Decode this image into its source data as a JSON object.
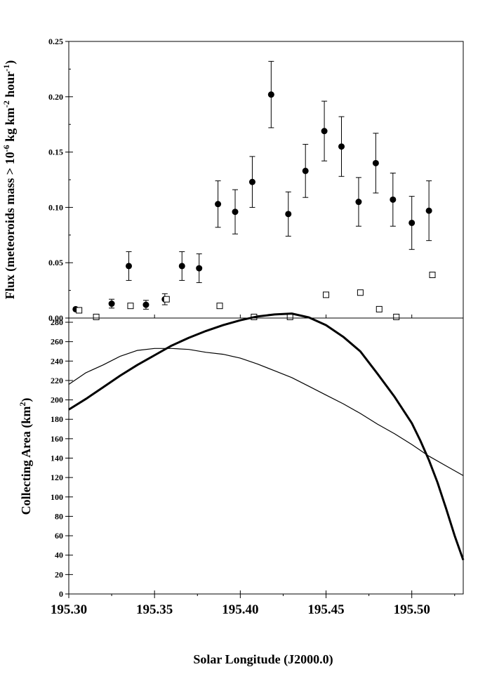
{
  "chart_data": [
    {
      "type": "scatter",
      "panel": "top",
      "ylabel": {
        "prefix": "Flux (meteoroids mass > 10",
        "exp1": "-6",
        "mid": " kg km",
        "exp2": "-2",
        "mid2": " hour",
        "exp3": "-1",
        "suffix": ")"
      },
      "xlim": [
        195.3,
        195.53
      ],
      "ylim": [
        0,
        0.25
      ],
      "yticks": [
        "0.00",
        "0.05",
        "0.10",
        "0.15",
        "0.20",
        "0.25"
      ],
      "grid": false,
      "legend": "none",
      "series": [
        {
          "marker": "filled-circle",
          "error_bars": true,
          "points": [
            {
              "x": 195.304,
              "y": 0.008,
              "err": 0
            },
            {
              "x": 195.325,
              "y": 0.013,
              "err": 0.004
            },
            {
              "x": 195.335,
              "y": 0.047,
              "err": 0.013
            },
            {
              "x": 195.345,
              "y": 0.012,
              "err": 0.004
            },
            {
              "x": 195.356,
              "y": 0.017,
              "err": 0.005
            },
            {
              "x": 195.366,
              "y": 0.047,
              "err": 0.013
            },
            {
              "x": 195.376,
              "y": 0.045,
              "err": 0.013
            },
            {
              "x": 195.387,
              "y": 0.103,
              "err": 0.021
            },
            {
              "x": 195.397,
              "y": 0.096,
              "err": 0.02
            },
            {
              "x": 195.407,
              "y": 0.123,
              "err": 0.023
            },
            {
              "x": 195.418,
              "y": 0.202,
              "err": 0.03
            },
            {
              "x": 195.428,
              "y": 0.094,
              "err": 0.02
            },
            {
              "x": 195.438,
              "y": 0.133,
              "err": 0.024
            },
            {
              "x": 195.449,
              "y": 0.169,
              "err": 0.027
            },
            {
              "x": 195.459,
              "y": 0.155,
              "err": 0.027
            },
            {
              "x": 195.469,
              "y": 0.105,
              "err": 0.022
            },
            {
              "x": 195.479,
              "y": 0.14,
              "err": 0.027
            },
            {
              "x": 195.489,
              "y": 0.107,
              "err": 0.024
            },
            {
              "x": 195.5,
              "y": 0.086,
              "err": 0.024
            },
            {
              "x": 195.51,
              "y": 0.097,
              "err": 0.027
            }
          ]
        },
        {
          "marker": "open-square",
          "error_bars": false,
          "points": [
            {
              "x": 195.306,
              "y": 0.007
            },
            {
              "x": 195.316,
              "y": 0.001
            },
            {
              "x": 195.336,
              "y": 0.011
            },
            {
              "x": 195.357,
              "y": 0.017
            },
            {
              "x": 195.388,
              "y": 0.011
            },
            {
              "x": 195.408,
              "y": 0.001
            },
            {
              "x": 195.429,
              "y": 0.001
            },
            {
              "x": 195.45,
              "y": 0.021
            },
            {
              "x": 195.47,
              "y": 0.023
            },
            {
              "x": 195.481,
              "y": 0.008
            },
            {
              "x": 195.491,
              "y": 0.001
            },
            {
              "x": 195.512,
              "y": 0.039
            }
          ]
        }
      ]
    },
    {
      "type": "line",
      "panel": "bottom",
      "xlabel": "Solar Longitude (J2000.0)",
      "ylabel": {
        "prefix": "Collecting Area (km",
        "exp": "2",
        "suffix": ")"
      },
      "xlim": [
        195.3,
        195.53
      ],
      "ylim": [
        0,
        290
      ],
      "xticks": [
        "195.30",
        "195.35",
        "195.40",
        "195.45",
        "195.50"
      ],
      "yticks": [
        "0",
        "20",
        "40",
        "60",
        "80",
        "100",
        "120",
        "140",
        "160",
        "180",
        "200",
        "220",
        "240",
        "260",
        "280"
      ],
      "grid": false,
      "legend": "none",
      "series": [
        {
          "style": "thin",
          "x": [
            195.3,
            195.31,
            195.32,
            195.33,
            195.34,
            195.35,
            195.36,
            195.37,
            195.38,
            195.39,
            195.4,
            195.41,
            195.42,
            195.43,
            195.44,
            195.45,
            195.46,
            195.47,
            195.48,
            195.49,
            195.5,
            195.51,
            195.52,
            195.53
          ],
          "y": [
            216,
            228,
            236,
            245,
            251,
            253,
            253,
            252,
            249,
            247,
            243,
            237,
            230,
            223,
            214,
            205,
            196,
            186,
            175,
            165,
            154,
            142,
            132,
            122
          ]
        },
        {
          "style": "thick",
          "x": [
            195.3,
            195.31,
            195.32,
            195.33,
            195.34,
            195.35,
            195.36,
            195.37,
            195.38,
            195.39,
            195.4,
            195.41,
            195.42,
            195.43,
            195.44,
            195.45,
            195.46,
            195.47,
            195.48,
            195.49,
            195.5,
            195.505,
            195.51,
            195.515,
            195.52,
            195.525,
            195.53
          ],
          "y": [
            190,
            201,
            213,
            225,
            236,
            246,
            256,
            264,
            271,
            277,
            282,
            286,
            288,
            289,
            285,
            277,
            265,
            250,
            227,
            203,
            176,
            158,
            138,
            115,
            88,
            60,
            35
          ]
        }
      ]
    }
  ]
}
